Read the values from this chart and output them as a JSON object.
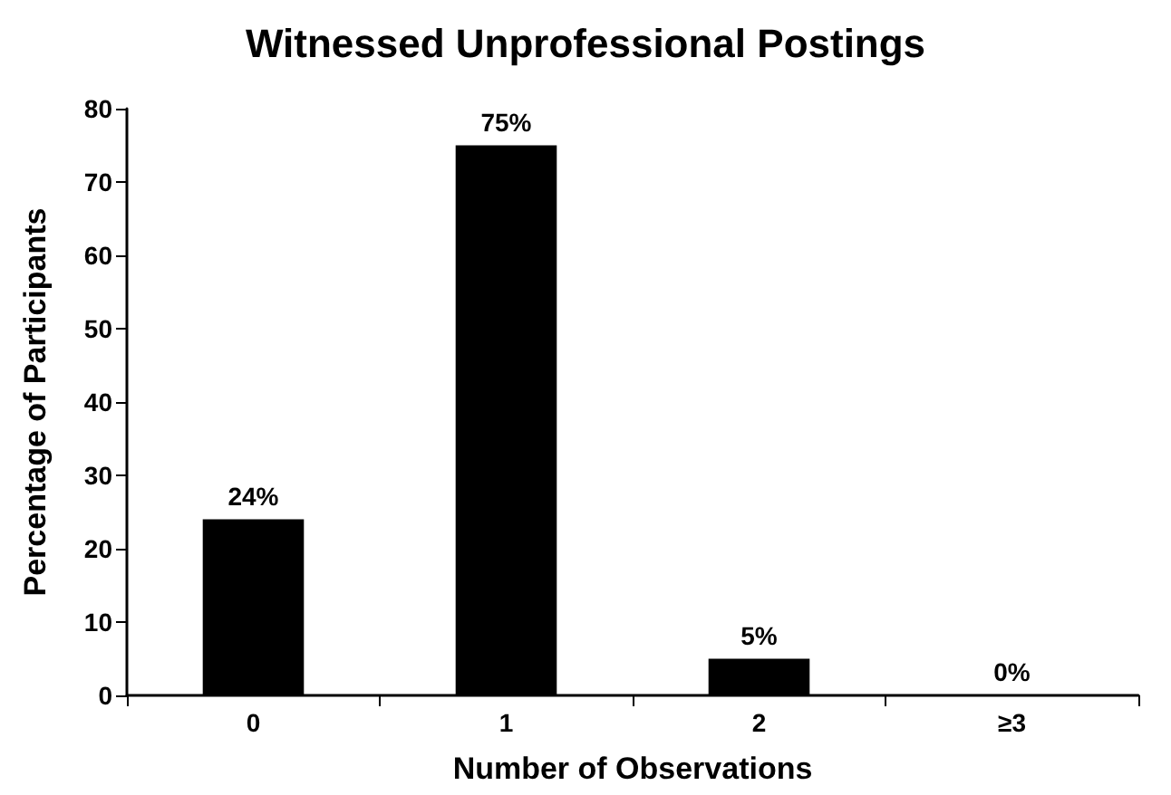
{
  "chart_data": {
    "type": "bar",
    "title": "Witnessed Unprofessional Postings",
    "xlabel": "Number of Observations",
    "ylabel": "Percentage of Participants",
    "categories": [
      "0",
      "1",
      "2",
      "≥3"
    ],
    "values": [
      24,
      75,
      5,
      0
    ],
    "value_labels": [
      "24%",
      "75%",
      "5%",
      "0%"
    ],
    "color": "#000000",
    "ylim": [
      0,
      80
    ],
    "yticks": [
      0,
      10,
      20,
      30,
      40,
      50,
      60,
      70,
      80
    ],
    "grid": false
  }
}
